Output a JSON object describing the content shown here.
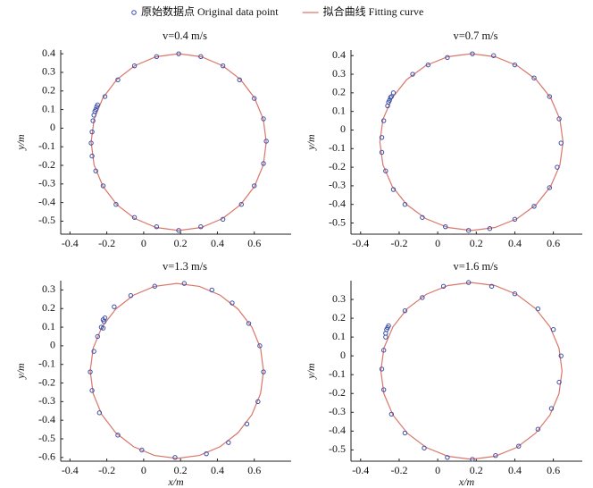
{
  "chart_data": [
    {
      "type": "scatter",
      "title": "v=0.4 m/s",
      "ylabel": "y/m",
      "xlim": [
        -0.45,
        0.8
      ],
      "ylim": [
        -0.57,
        0.42
      ],
      "xticks": [
        -0.4,
        -0.2,
        0,
        0.2,
        0.4,
        0.6
      ],
      "yticks": [
        -0.5,
        -0.4,
        -0.3,
        -0.2,
        -0.1,
        0,
        0.1,
        0.2,
        0.3,
        0.4
      ],
      "series": [
        {
          "name": "原始数据点 Original data point",
          "style": "points",
          "color": "#3a4fa8",
          "x": [
            -0.26,
            -0.255,
            -0.25,
            -0.265,
            -0.27,
            -0.275,
            -0.28,
            -0.285,
            -0.28,
            -0.26,
            -0.22,
            -0.15,
            -0.05,
            0.07,
            0.19,
            0.31,
            0.43,
            0.53,
            0.6,
            0.65,
            0.665,
            0.65,
            0.6,
            0.52,
            0.43,
            0.31,
            0.19,
            0.07,
            -0.05,
            -0.14,
            -0.21
          ],
          "values": [
            0.1,
            0.115,
            0.125,
            0.09,
            0.07,
            0.04,
            -0.02,
            -0.08,
            -0.15,
            -0.23,
            -0.31,
            -0.41,
            -0.48,
            -0.53,
            -0.55,
            -0.53,
            -0.49,
            -0.41,
            -0.31,
            -0.19,
            -0.07,
            0.05,
            0.16,
            0.26,
            0.335,
            0.385,
            0.4,
            0.385,
            0.335,
            0.26,
            0.17
          ]
        },
        {
          "name": "拟合曲线 Fitting curve",
          "style": "curve",
          "color": "#d9776a",
          "x": [
            0.665,
            0.649,
            0.601,
            0.526,
            0.428,
            0.313,
            0.19,
            0.067,
            -0.048,
            -0.146,
            -0.221,
            -0.269,
            -0.285,
            -0.269,
            -0.221,
            -0.146,
            -0.048,
            0.067,
            0.19,
            0.313,
            0.428,
            0.526,
            0.601,
            0.649,
            0.665
          ],
          "values": [
            -0.075,
            0.048,
            0.163,
            0.261,
            0.336,
            0.384,
            0.4,
            0.384,
            0.336,
            0.261,
            0.163,
            0.048,
            -0.075,
            -0.198,
            -0.313,
            -0.411,
            -0.486,
            -0.534,
            -0.55,
            -0.534,
            -0.486,
            -0.411,
            -0.313,
            -0.198,
            -0.075
          ]
        }
      ]
    },
    {
      "type": "scatter",
      "title": "v=0.7 m/s",
      "ylabel": "y/m",
      "xlim": [
        -0.45,
        0.75
      ],
      "ylim": [
        -0.56,
        0.43
      ],
      "xticks": [
        -0.4,
        -0.2,
        0,
        0.2,
        0.4,
        0.6
      ],
      "yticks": [
        -0.5,
        -0.4,
        -0.3,
        -0.2,
        -0.1,
        0,
        0.1,
        0.2,
        0.3,
        0.4
      ],
      "series": [
        {
          "style": "points",
          "color": "#3a4fa8",
          "x": [
            -0.25,
            -0.245,
            -0.24,
            -0.255,
            -0.23,
            -0.26,
            -0.28,
            -0.29,
            -0.29,
            -0.27,
            -0.23,
            -0.17,
            -0.08,
            0.04,
            0.16,
            0.27,
            0.4,
            0.5,
            0.58,
            0.62,
            0.64,
            0.63,
            0.58,
            0.5,
            0.4,
            0.29,
            0.18,
            0.05,
            -0.05,
            -0.13
          ],
          "values": [
            0.16,
            0.175,
            0.18,
            0.15,
            0.2,
            0.13,
            0.05,
            -0.04,
            -0.12,
            -0.22,
            -0.32,
            -0.4,
            -0.47,
            -0.52,
            -0.54,
            -0.53,
            -0.48,
            -0.41,
            -0.31,
            -0.2,
            -0.07,
            0.06,
            0.18,
            0.28,
            0.35,
            0.4,
            0.41,
            0.39,
            0.35,
            0.3
          ]
        },
        {
          "style": "curve",
          "color": "#d9776a",
          "x": [
            0.65,
            0.634,
            0.586,
            0.511,
            0.413,
            0.298,
            0.175,
            0.052,
            -0.063,
            -0.161,
            -0.236,
            -0.284,
            -0.3,
            -0.284,
            -0.236,
            -0.161,
            -0.063,
            0.052,
            0.175,
            0.298,
            0.413,
            0.511,
            0.586,
            0.634,
            0.65
          ],
          "values": [
            -0.065,
            0.058,
            0.173,
            0.271,
            0.346,
            0.394,
            0.41,
            0.394,
            0.346,
            0.271,
            0.173,
            0.058,
            -0.065,
            -0.188,
            -0.303,
            -0.401,
            -0.476,
            -0.524,
            -0.54,
            -0.524,
            -0.476,
            -0.401,
            -0.303,
            -0.188,
            -0.065
          ]
        }
      ]
    },
    {
      "type": "scatter",
      "title": "v=1.3 m/s",
      "xlabel": "x/m",
      "ylabel": "y/m",
      "xlim": [
        -0.45,
        0.8
      ],
      "ylim": [
        -0.62,
        0.35
      ],
      "xticks": [
        -0.4,
        -0.2,
        0,
        0.2,
        0.4,
        0.6
      ],
      "yticks": [
        -0.6,
        -0.5,
        -0.4,
        -0.3,
        -0.2,
        -0.1,
        0,
        0.1,
        0.2,
        0.3
      ],
      "series": [
        {
          "style": "points",
          "color": "#3a4fa8",
          "x": [
            -0.22,
            -0.21,
            -0.215,
            -0.23,
            -0.22,
            -0.25,
            -0.27,
            -0.29,
            -0.28,
            -0.24,
            -0.14,
            -0.01,
            0.17,
            0.34,
            0.46,
            0.56,
            0.62,
            0.65,
            0.63,
            0.57,
            0.48,
            0.37,
            0.22,
            0.06,
            -0.07,
            -0.16
          ],
          "values": [
            0.14,
            0.15,
            0.13,
            0.1,
            0.095,
            0.05,
            -0.03,
            -0.14,
            -0.24,
            -0.36,
            -0.48,
            -0.56,
            -0.6,
            -0.58,
            -0.52,
            -0.42,
            -0.3,
            -0.14,
            0,
            0.12,
            0.23,
            0.3,
            0.335,
            0.32,
            0.27,
            0.21
          ]
        },
        {
          "style": "curve",
          "color": "#d9776a",
          "x": [
            0.65,
            0.634,
            0.587,
            0.512,
            0.415,
            0.302,
            0.18,
            0.058,
            -0.055,
            -0.152,
            -0.227,
            -0.274,
            -0.29,
            -0.274,
            -0.227,
            -0.152,
            -0.055,
            0.058,
            0.18,
            0.302,
            0.415,
            0.512,
            0.587,
            0.634,
            0.65
          ],
          "values": [
            -0.135,
            -0.013,
            0.1,
            0.197,
            0.272,
            0.319,
            0.335,
            0.319,
            0.272,
            0.197,
            0.1,
            -0.013,
            -0.135,
            -0.257,
            -0.37,
            -0.467,
            -0.542,
            -0.589,
            -0.605,
            -0.589,
            -0.542,
            -0.467,
            -0.37,
            -0.257,
            -0.135
          ]
        }
      ]
    },
    {
      "type": "scatter",
      "title": "v=1.6 m/s",
      "xlabel": "x/m",
      "ylabel": "y/m",
      "xlim": [
        -0.45,
        0.75
      ],
      "ylim": [
        -0.56,
        0.4
      ],
      "xticks": [
        -0.4,
        -0.2,
        0,
        0.2,
        0.4,
        0.6
      ],
      "yticks": [
        -0.5,
        -0.4,
        -0.3,
        -0.2,
        -0.1,
        0,
        0.1,
        0.2,
        0.3
      ],
      "series": [
        {
          "style": "points",
          "color": "#3a4fa8",
          "x": [
            -0.26,
            -0.255,
            -0.265,
            -0.27,
            -0.27,
            -0.28,
            -0.29,
            -0.28,
            -0.24,
            -0.17,
            -0.07,
            0.05,
            0.18,
            0.3,
            0.42,
            0.52,
            0.59,
            0.63,
            0.64,
            0.6,
            0.52,
            0.4,
            0.28,
            0.16,
            0.03,
            -0.08,
            -0.17
          ],
          "values": [
            0.15,
            0.16,
            0.14,
            0.12,
            0.1,
            0.03,
            -0.07,
            -0.18,
            -0.31,
            -0.41,
            -0.49,
            -0.54,
            -0.55,
            -0.53,
            -0.48,
            -0.39,
            -0.28,
            -0.14,
            0,
            0.14,
            0.25,
            0.33,
            0.37,
            0.39,
            0.37,
            0.31,
            0.24
          ]
        },
        {
          "style": "curve",
          "color": "#d9776a",
          "x": [
            0.645,
            0.629,
            0.582,
            0.507,
            0.41,
            0.297,
            0.175,
            0.053,
            -0.06,
            -0.157,
            -0.232,
            -0.279,
            -0.295,
            -0.279,
            -0.232,
            -0.157,
            -0.06,
            0.053,
            0.175,
            0.297,
            0.41,
            0.507,
            0.582,
            0.629,
            0.645
          ],
          "values": [
            -0.08,
            0.042,
            0.155,
            0.252,
            0.327,
            0.374,
            0.39,
            0.374,
            0.327,
            0.252,
            0.155,
            0.042,
            -0.08,
            -0.202,
            -0.315,
            -0.412,
            -0.487,
            -0.534,
            -0.55,
            -0.534,
            -0.487,
            -0.412,
            -0.315,
            -0.202,
            -0.08
          ]
        }
      ]
    }
  ]
}
